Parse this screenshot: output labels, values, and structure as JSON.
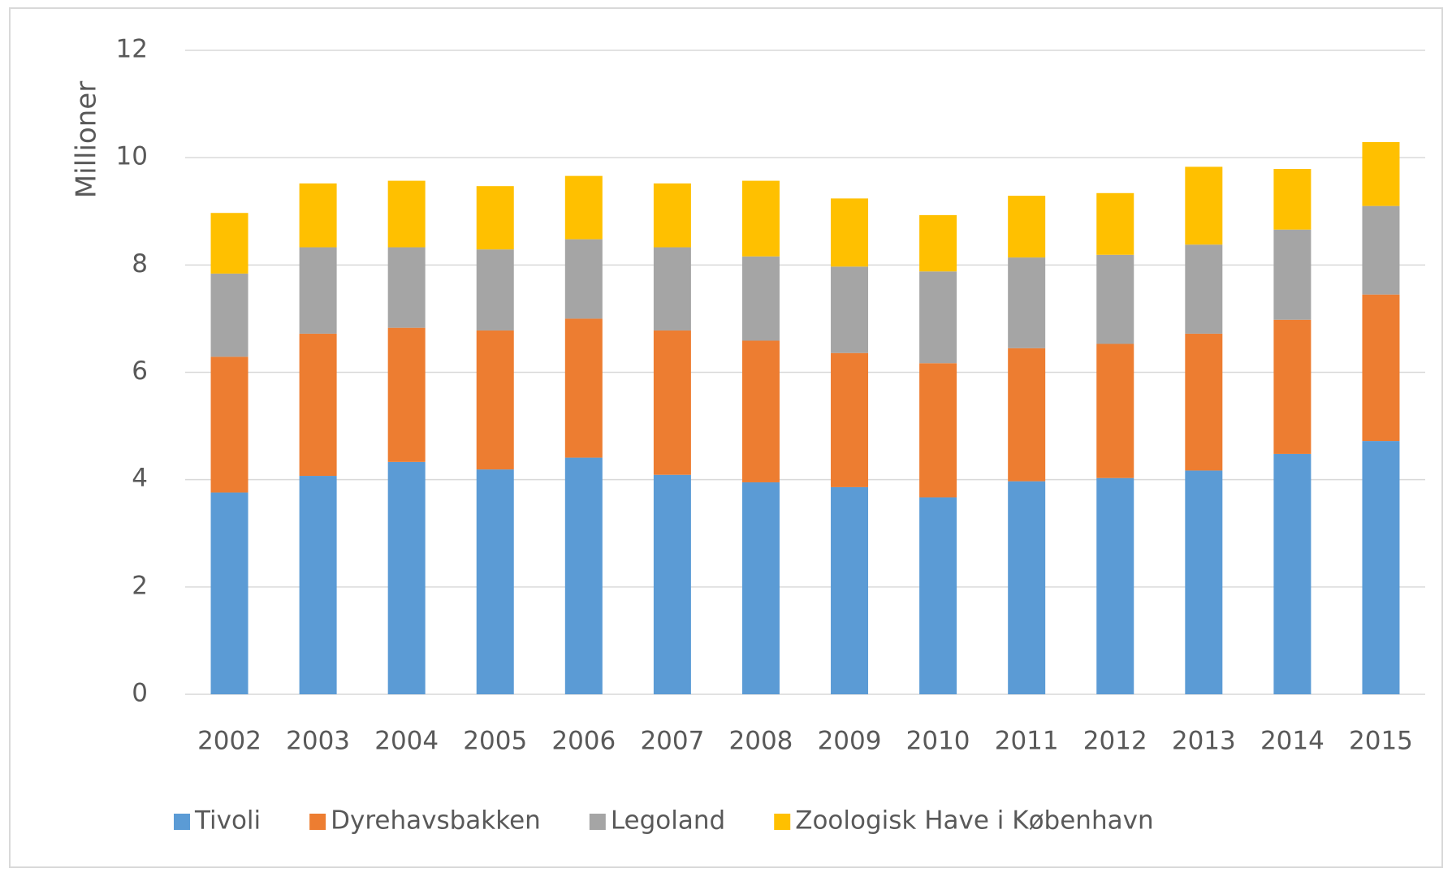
{
  "chart_data": {
    "type": "stacked_bar",
    "y_label": "Millioner",
    "categories": [
      "2002",
      "2003",
      "2004",
      "2005",
      "2006",
      "2007",
      "2008",
      "2009",
      "2010",
      "2011",
      "2012",
      "2013",
      "2014",
      "2015"
    ],
    "series": [
      {
        "name": "Tivoli",
        "color": "#5b9bd5",
        "values": [
          3.76,
          4.07,
          4.33,
          4.19,
          4.41,
          4.09,
          3.95,
          3.86,
          3.67,
          3.97,
          4.03,
          4.17,
          4.48,
          4.72
        ]
      },
      {
        "name": "Dyrehavsbakken",
        "color": "#ed7d31",
        "values": [
          2.53,
          2.65,
          2.5,
          2.59,
          2.59,
          2.69,
          2.64,
          2.5,
          2.5,
          2.48,
          2.5,
          2.55,
          2.5,
          2.73
        ]
      },
      {
        "name": "Legoland",
        "color": "#a5a5a5",
        "values": [
          1.55,
          1.61,
          1.5,
          1.51,
          1.48,
          1.55,
          1.57,
          1.61,
          1.71,
          1.69,
          1.66,
          1.66,
          1.68,
          1.65
        ]
      },
      {
        "name": "Zoologisk Have i København",
        "color": "#ffc000",
        "values": [
          1.13,
          1.19,
          1.24,
          1.18,
          1.18,
          1.19,
          1.41,
          1.27,
          1.05,
          1.15,
          1.15,
          1.45,
          1.13,
          1.19
        ]
      }
    ],
    "ylim": [
      0,
      12
    ],
    "yticks": [
      0,
      2,
      4,
      6,
      8,
      10,
      12
    ],
    "grid": true,
    "legend": "bottom"
  }
}
